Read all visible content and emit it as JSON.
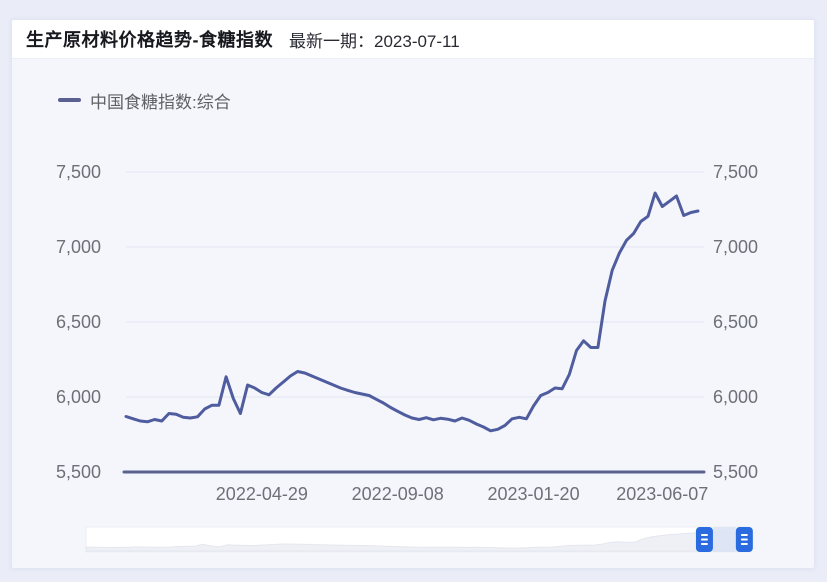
{
  "header": {
    "title": "生产原材料价格趋势-食糖指数",
    "latest_label": "最新一期：",
    "latest_date": "2023-07-11"
  },
  "legend": {
    "label": "中国食糖指数:综合"
  },
  "icons": {
    "datazoom_handle": "grip-lines-icon"
  },
  "colors": {
    "page_bg": "#eaedf8",
    "card_bg": "#f4f6fc",
    "header_bg": "#ffffff",
    "series_line": "#4f5c9e",
    "axis_line": "#5a6290",
    "gridline": "#e2e5f0",
    "tick_text": "#6e7079",
    "datazoom_track": "#ffffff",
    "datazoom_preview": "#eef0f5",
    "datazoom_window": "#dbe3f4",
    "datazoom_handle": "#2a6ce0"
  },
  "chart_data": {
    "type": "line",
    "title": "生产原材料价格趋势-食糖指数",
    "legend_entries": [
      "中国食糖指数:综合"
    ],
    "legend_position": "top-left",
    "grid": true,
    "ylim": [
      5500,
      7500
    ],
    "y_ticks": [
      5500,
      6000,
      6500,
      7000,
      7500
    ],
    "y_axis_sides": [
      "left",
      "right"
    ],
    "x_tick_labels": [
      "2022-04-29",
      "2022-09-08",
      "2023-01-20",
      "2023-06-07"
    ],
    "x_tick_indices": [
      19,
      38,
      57,
      75
    ],
    "series": [
      {
        "name": "中国食糖指数:综合",
        "values": [
          5870,
          5855,
          5840,
          5835,
          5850,
          5840,
          5890,
          5885,
          5865,
          5860,
          5868,
          5920,
          5945,
          5945,
          6135,
          5990,
          5890,
          6080,
          6060,
          6030,
          6015,
          6060,
          6100,
          6140,
          6170,
          6160,
          6140,
          6120,
          6100,
          6080,
          6060,
          6045,
          6030,
          6020,
          6010,
          5985,
          5960,
          5930,
          5905,
          5880,
          5860,
          5850,
          5862,
          5848,
          5858,
          5852,
          5840,
          5860,
          5845,
          5820,
          5800,
          5775,
          5785,
          5810,
          5855,
          5865,
          5855,
          5940,
          6010,
          6030,
          6060,
          6055,
          6150,
          6310,
          6375,
          6330,
          6330,
          6640,
          6845,
          6960,
          7045,
          7090,
          7170,
          7205,
          7360,
          7270,
          7305,
          7340,
          7210,
          7230,
          7240
        ]
      }
    ],
    "datazoom": {
      "start_fraction": 0.93,
      "end_fraction": 0.99
    }
  }
}
